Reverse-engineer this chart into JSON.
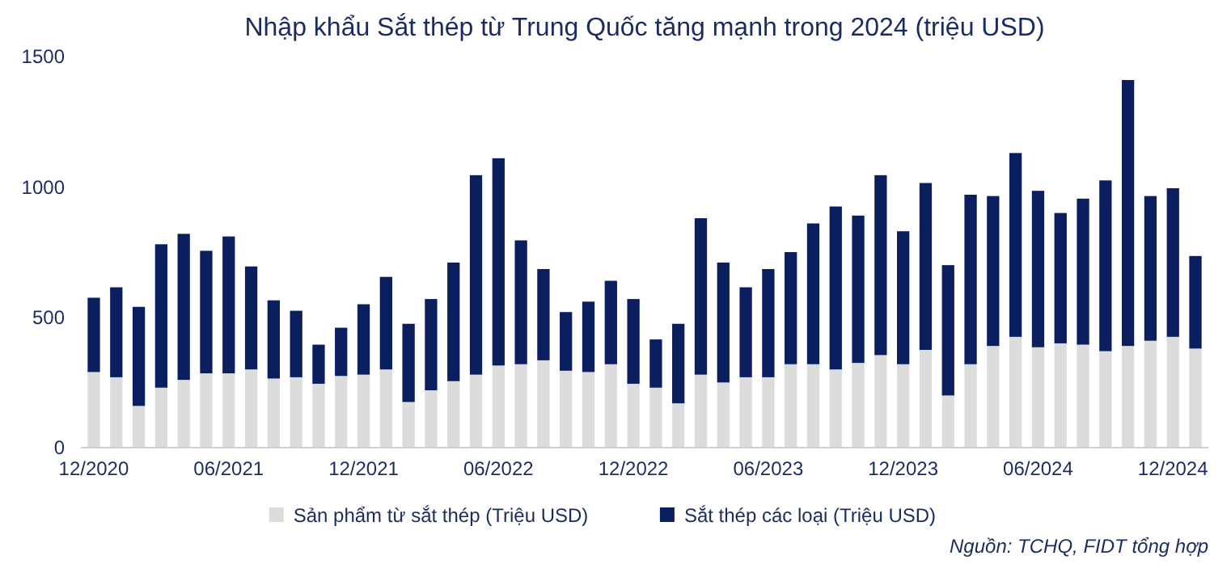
{
  "chart_data": {
    "type": "bar",
    "title": "Nhập khẩu Sắt thép từ Trung Quốc tăng mạnh trong 2024 (triệu USD)",
    "categories": [
      "12/2020",
      null,
      null,
      null,
      null,
      null,
      "06/2021",
      null,
      null,
      null,
      null,
      null,
      "12/2021",
      null,
      null,
      null,
      null,
      null,
      "06/2022",
      null,
      null,
      null,
      null,
      null,
      "12/2022",
      null,
      null,
      null,
      null,
      null,
      "06/2023",
      null,
      null,
      null,
      null,
      null,
      "12/2023",
      null,
      null,
      null,
      null,
      null,
      "06/2024",
      null,
      null,
      null,
      null,
      null,
      "12/2024",
      null
    ],
    "stacked": true,
    "series": [
      {
        "name": "Sản phẩm từ sắt thép (Triệu USD)",
        "color": "#dcdcdc",
        "values": [
          290,
          270,
          160,
          230,
          260,
          285,
          285,
          300,
          265,
          270,
          245,
          275,
          280,
          300,
          175,
          220,
          255,
          280,
          315,
          320,
          335,
          295,
          290,
          320,
          245,
          230,
          170,
          280,
          250,
          270,
          270,
          320,
          320,
          300,
          325,
          355,
          320,
          375,
          200,
          320,
          390,
          425,
          385,
          400,
          395,
          370,
          390,
          410,
          425,
          380
        ]
      },
      {
        "name": "Sắt thép các loại (Triệu USD)",
        "color": "#0b1f5e",
        "values": [
          285,
          345,
          380,
          550,
          560,
          470,
          525,
          395,
          300,
          255,
          150,
          185,
          270,
          355,
          300,
          350,
          455,
          765,
          795,
          475,
          350,
          225,
          270,
          320,
          325,
          185,
          305,
          600,
          460,
          345,
          415,
          430,
          540,
          625,
          565,
          690,
          510,
          640,
          500,
          650,
          575,
          705,
          600,
          500,
          560,
          655,
          1020,
          555,
          570,
          355
        ]
      }
    ],
    "ylim": [
      0,
      1500
    ],
    "yticks": [
      0,
      500,
      1000,
      1500
    ],
    "grid": false,
    "legend": "bottom",
    "annotations": [
      "Nguồn: TCHQ, FIDT tổng hợp"
    ]
  }
}
